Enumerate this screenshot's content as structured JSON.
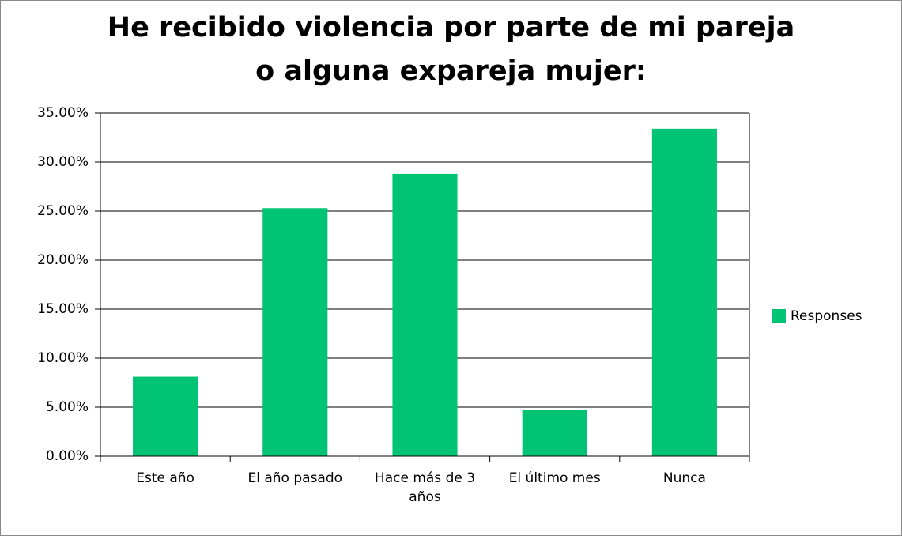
{
  "chart_data": {
    "type": "bar",
    "title": "He recibido violencia por parte de mi pareja\no alguna expareja mujer:",
    "categories": [
      "Este año",
      "El año pasado",
      "Hace más de 3 años",
      "El último mes",
      "Nunca"
    ],
    "series": [
      {
        "name": "Responses",
        "color": "#00c373",
        "values": [
          8.1,
          25.3,
          28.8,
          4.7,
          33.4
        ]
      }
    ],
    "ylim": [
      0,
      35
    ],
    "yticks": [
      {
        "value": 0,
        "label": "0.00%"
      },
      {
        "value": 5,
        "label": "5.00%"
      },
      {
        "value": 10,
        "label": "10.00%"
      },
      {
        "value": 15,
        "label": "15.00%"
      },
      {
        "value": 20,
        "label": "20.00%"
      },
      {
        "value": 25,
        "label": "25.00%"
      },
      {
        "value": 30,
        "label": "30.00%"
      },
      {
        "value": 35,
        "label": "35.00%"
      }
    ],
    "grid": true,
    "legend": "right"
  }
}
